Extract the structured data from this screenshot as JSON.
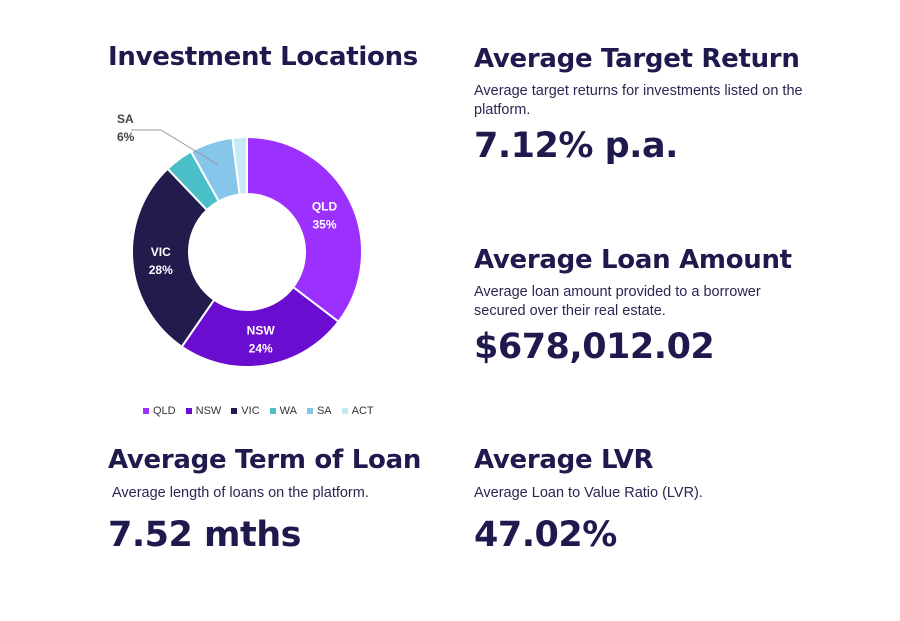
{
  "investment_locations": {
    "title": "Investment Locations"
  },
  "target_return": {
    "title": "Average Target Return",
    "description": "Average target returns for investments listed on the platform.",
    "value": "7.12% p.a."
  },
  "loan_amount": {
    "title": "Average Loan Amount",
    "description": "Average loan amount provided to a borrower secured over their real estate.",
    "value": "$678,012.02"
  },
  "term_of_loan": {
    "title": "Average Term of Loan",
    "description": "Average length of loans on the platform.",
    "value": "7.52 mths"
  },
  "lvr": {
    "title": "Average LVR",
    "description": "Average Loan to Value Ratio (LVR).",
    "value": "47.02%"
  },
  "chart_data": {
    "type": "pie",
    "title": "Investment Locations",
    "donut": true,
    "legend_placement": "bottom",
    "slices": [
      {
        "label": "QLD",
        "value": 35,
        "display": "35%",
        "color": "#9b30ff",
        "show_label": true
      },
      {
        "label": "NSW",
        "value": 24,
        "display": "24%",
        "color": "#6a0dd1",
        "show_label": true
      },
      {
        "label": "VIC",
        "value": 28,
        "display": "28%",
        "color": "#221c4c",
        "show_label": true
      },
      {
        "label": "WA",
        "value": 4,
        "display": "",
        "color": "#4bbfc7",
        "show_label": false
      },
      {
        "label": "SA",
        "value": 6,
        "display": "6%",
        "color": "#86c6ea",
        "show_label": "callout"
      },
      {
        "label": "ACT",
        "value": 2,
        "display": "",
        "color": "#c6e9f3",
        "show_label": false
      }
    ]
  }
}
